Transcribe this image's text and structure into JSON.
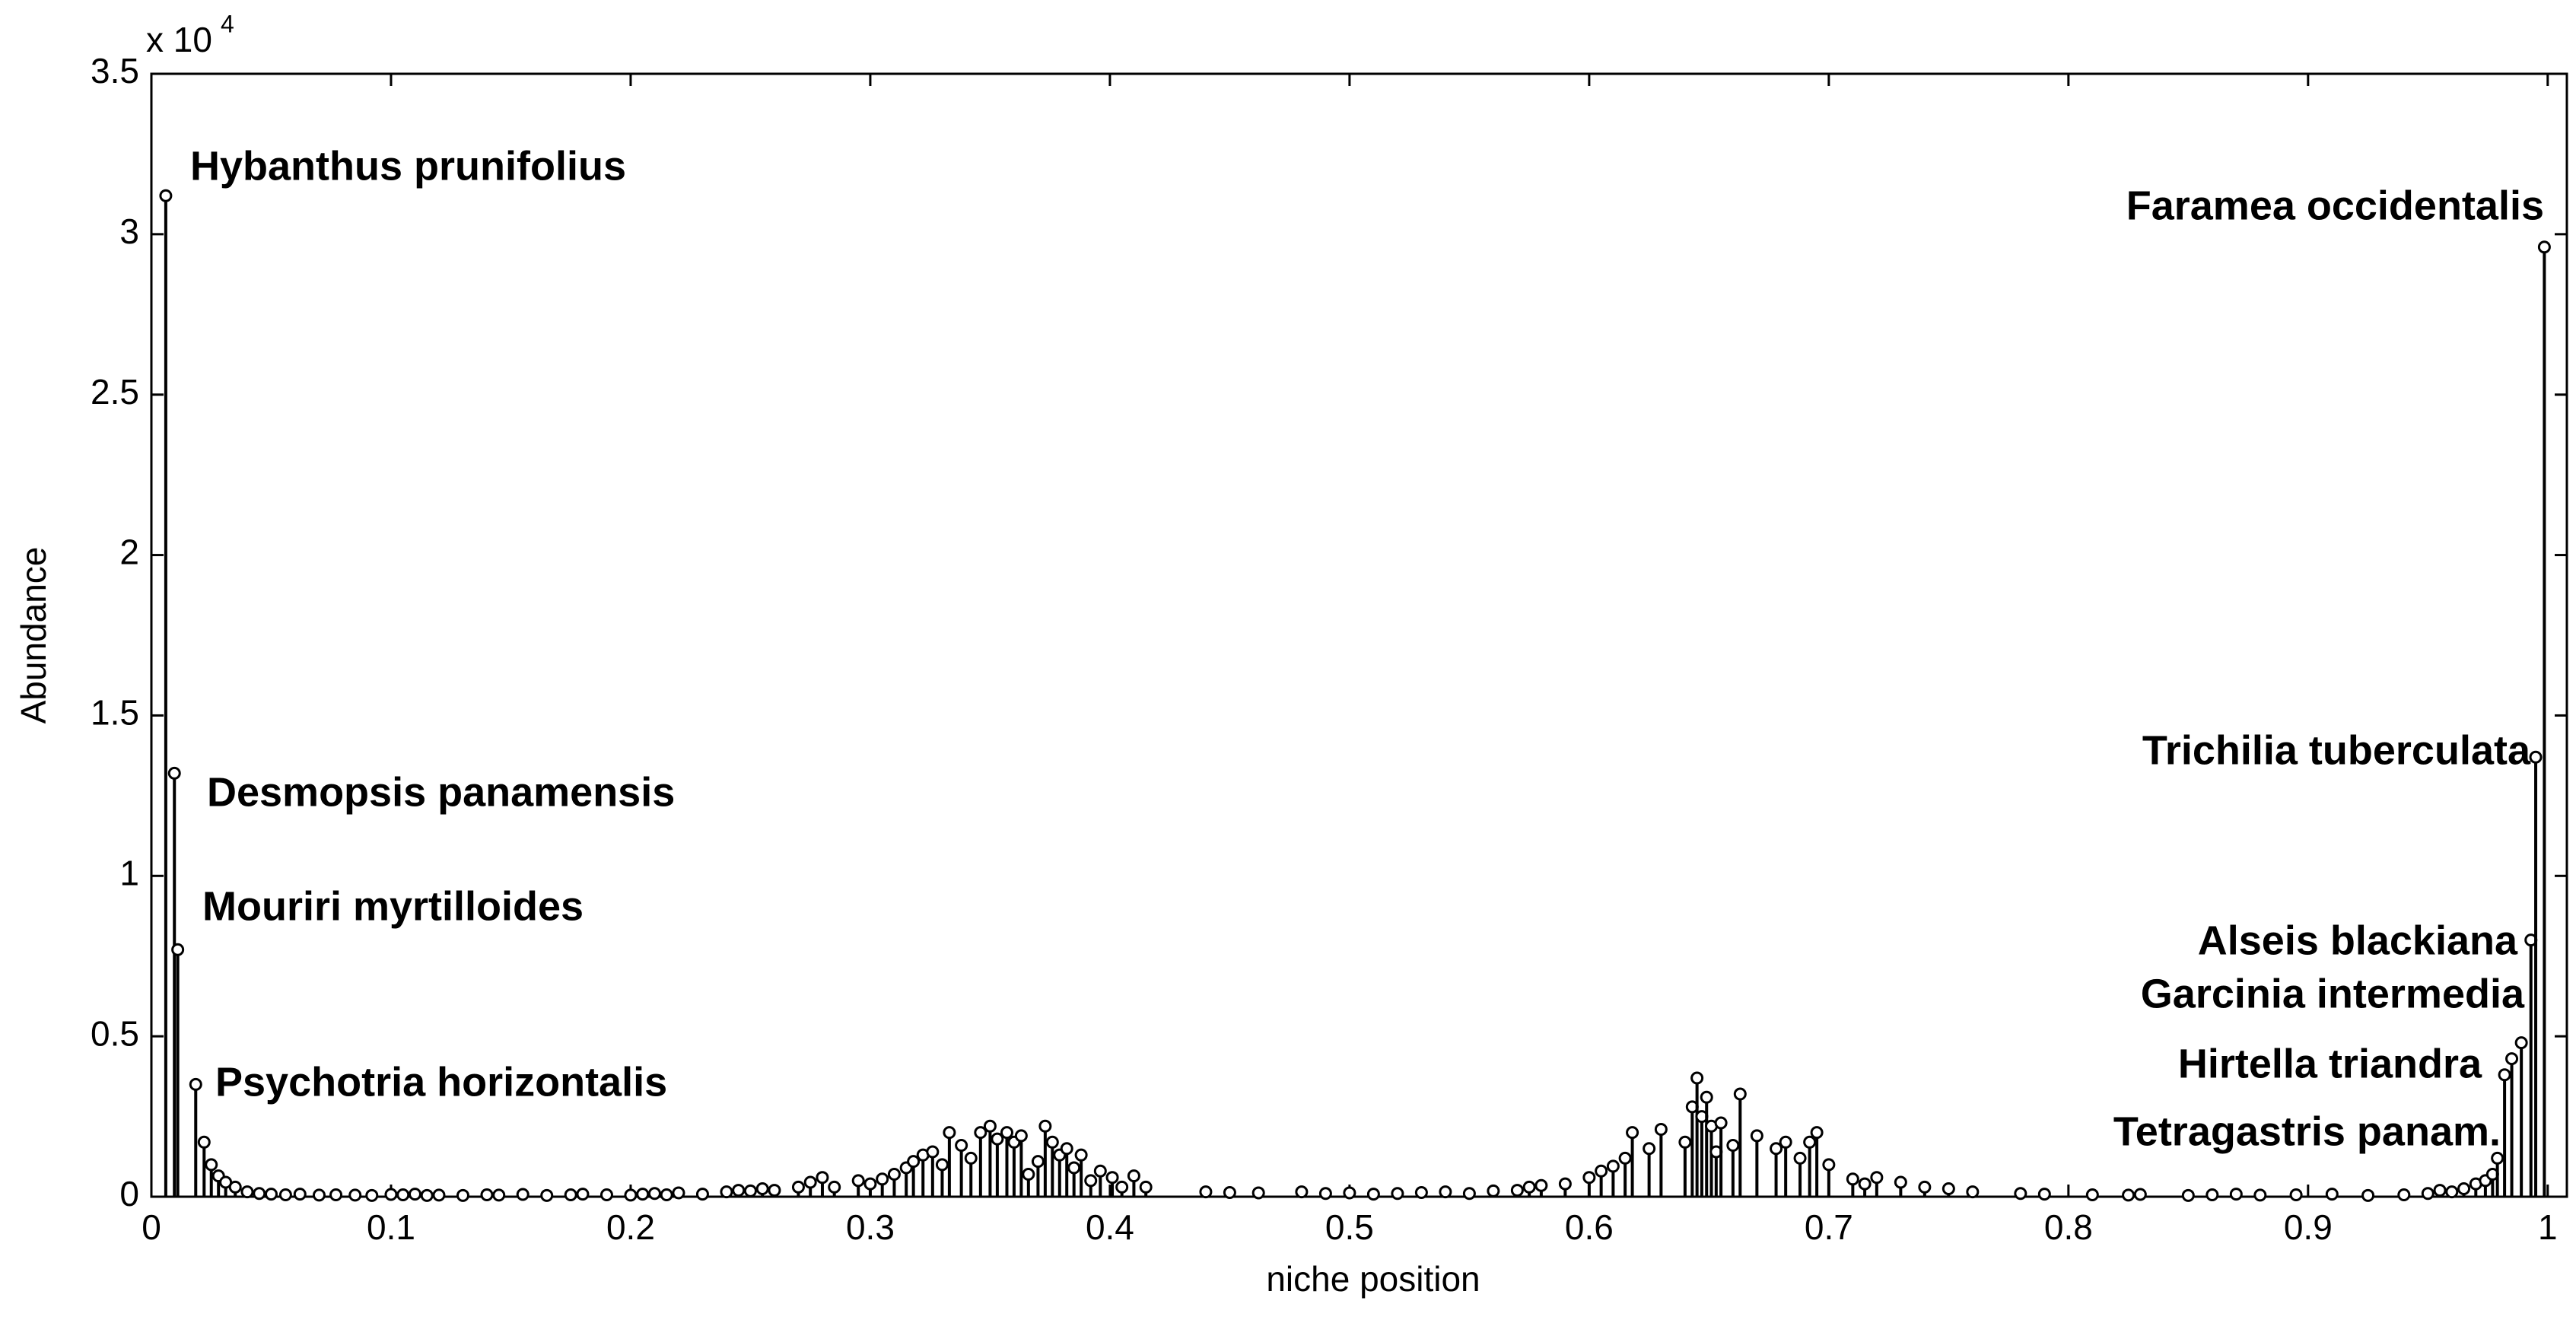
{
  "chart_data": {
    "type": "stem",
    "xlabel": "niche position",
    "ylabel": "Abundance",
    "y_multiplier": {
      "base": "x 10",
      "exponent": "4"
    },
    "xlim": [
      0,
      1.008
    ],
    "ylim": [
      0,
      35000
    ],
    "xticks": [
      0,
      0.1,
      0.2,
      0.3,
      0.4,
      0.5,
      0.6,
      0.7,
      0.8,
      0.9,
      1
    ],
    "yticks": [
      0,
      {
        "value": 5000,
        "label": "0.5"
      },
      {
        "value": 10000,
        "label": "1"
      },
      {
        "value": 15000,
        "label": "1.5"
      },
      {
        "value": 20000,
        "label": "2"
      },
      {
        "value": 25000,
        "label": "2.5"
      },
      {
        "value": 30000,
        "label": "3"
      },
      {
        "value": 35000,
        "label": "3.5"
      }
    ],
    "color": "#000000",
    "annotations": [
      "Hybanthus prunifolius",
      "Desmopsis panamensis",
      "Mouriri myrtilloides",
      "Psychotria horizontalis",
      "Faramea occidentalis",
      "Trichilia tuberculata",
      "Alseis blackiana",
      "Garcinia intermedia",
      "Hirtella triandra",
      "Tetragastris panam."
    ],
    "x": [
      0.006,
      0.0096,
      0.011,
      0.0185,
      0.022,
      0.025,
      0.028,
      0.031,
      0.035,
      0.04,
      0.045,
      0.05,
      0.056,
      0.062,
      0.07,
      0.077,
      0.085,
      0.092,
      0.1,
      0.105,
      0.11,
      0.115,
      0.12,
      0.13,
      0.14,
      0.145,
      0.155,
      0.165,
      0.175,
      0.18,
      0.19,
      0.2,
      0.205,
      0.21,
      0.215,
      0.22,
      0.23,
      0.24,
      0.245,
      0.25,
      0.255,
      0.26,
      0.27,
      0.275,
      0.28,
      0.285,
      0.295,
      0.3,
      0.305,
      0.31,
      0.315,
      0.318,
      0.322,
      0.326,
      0.33,
      0.333,
      0.338,
      0.342,
      0.346,
      0.35,
      0.353,
      0.357,
      0.36,
      0.363,
      0.366,
      0.37,
      0.373,
      0.376,
      0.379,
      0.382,
      0.385,
      0.388,
      0.392,
      0.396,
      0.401,
      0.405,
      0.41,
      0.415,
      0.44,
      0.45,
      0.462,
      0.48,
      0.49,
      0.5,
      0.51,
      0.52,
      0.53,
      0.54,
      0.55,
      0.56,
      0.57,
      0.575,
      0.58,
      0.59,
      0.6,
      0.605,
      0.61,
      0.615,
      0.618,
      0.625,
      0.63,
      0.64,
      0.643,
      0.645,
      0.647,
      0.649,
      0.651,
      0.653,
      0.655,
      0.66,
      0.663,
      0.67,
      0.678,
      0.682,
      0.688,
      0.692,
      0.695,
      0.7,
      0.71,
      0.715,
      0.72,
      0.73,
      0.74,
      0.75,
      0.76,
      0.78,
      0.79,
      0.81,
      0.825,
      0.83,
      0.85,
      0.86,
      0.87,
      0.88,
      0.895,
      0.91,
      0.925,
      0.94,
      0.95,
      0.955,
      0.96,
      0.965,
      0.97,
      0.974,
      0.977,
      0.979,
      0.982,
      0.985,
      0.989,
      0.993,
      0.995,
      0.9986
    ],
    "values": [
      31200,
      13200,
      7700,
      3500,
      1700,
      1000,
      650,
      450,
      300,
      150,
      100,
      80,
      60,
      80,
      50,
      60,
      50,
      40,
      70,
      60,
      80,
      40,
      50,
      40,
      60,
      50,
      70,
      40,
      60,
      80,
      60,
      50,
      80,
      100,
      60,
      120,
      80,
      150,
      200,
      180,
      250,
      200,
      300,
      450,
      600,
      300,
      500,
      400,
      550,
      700,
      900,
      1100,
      1300,
      1400,
      1000,
      2000,
      1600,
      1200,
      2000,
      2200,
      1800,
      2000,
      1700,
      1900,
      700,
      1100,
      2200,
      1700,
      1300,
      1500,
      900,
      1300,
      500,
      800,
      600,
      300,
      650,
      300,
      150,
      130,
      120,
      150,
      100,
      120,
      80,
      100,
      130,
      150,
      100,
      180,
      200,
      300,
      350,
      400,
      600,
      800,
      950,
      1200,
      2000,
      1500,
      2100,
      1700,
      2800,
      3700,
      2500,
      3100,
      2200,
      1400,
      2300,
      1600,
      3200,
      1900,
      1500,
      1700,
      1200,
      1700,
      2000,
      1000,
      550,
      400,
      600,
      450,
      300,
      250,
      150,
      100,
      80,
      60,
      50,
      70,
      40,
      60,
      80,
      50,
      60,
      80,
      40,
      60,
      100,
      200,
      150,
      250,
      400,
      500,
      700,
      1200,
      3800,
      4300,
      4800,
      8000,
      13700,
      29600
    ]
  }
}
